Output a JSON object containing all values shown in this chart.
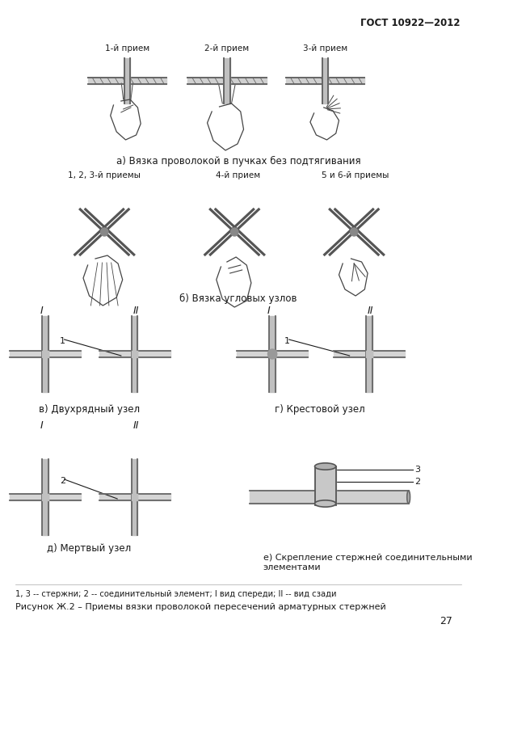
{
  "page_number": "27",
  "gost_header": "ГОСТ 10922—2012",
  "section_a_labels": [
    "1-й прием",
    "2-й прием",
    "3-й прием"
  ],
  "section_a_caption": "а) Вязка проволокой в пучках без подтягивания",
  "section_b_labels": [
    "1, 2, 3-й приемы",
    "4-й прием",
    "5 и 6-й приемы"
  ],
  "section_b_caption": "б) Вязка угловых узлов",
  "section_v_caption": "в) Двухрядный узел",
  "section_g_caption": "г) Крестовой узел",
  "section_d_caption": "д) Мертвый узел",
  "section_e_caption": "е) Скрепление стержней соединительными\nэлементами",
  "footer_note": "1, 3 -- стержни; 2 -- соединительный элемент; I вид спереди; II -- вид сзади",
  "figure_caption": "Рисунок Ж.2 – Приемы вязки проволокой пересечений арматурных стержней",
  "bg_color": "#ffffff",
  "text_color": "#1a1a1a",
  "line_color": "#333333",
  "bar_color": "#aaaaaa",
  "bar_edge": "#555555",
  "roman_I": "I",
  "roman_II": "II",
  "label_1": "1",
  "label_2": "2",
  "label_3": "3"
}
